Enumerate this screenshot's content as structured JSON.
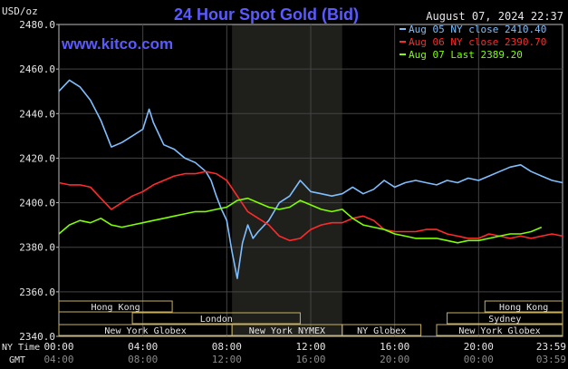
{
  "chart_data": {
    "type": "line",
    "title": "24 Hour Spot Gold (Bid)",
    "ylabel": "USD/oz",
    "timestamp": "August 07, 2024 22:37",
    "watermark": "www.kitco.com",
    "ylim": [
      2340,
      2480
    ],
    "yticks": [
      "2480.0",
      "2460.0",
      "2440.0",
      "2420.0",
      "2400.0",
      "2380.0",
      "2360.0",
      "2340.0"
    ],
    "xlim": [
      0,
      24
    ],
    "row_labels": {
      "ny": "NY Time",
      "gmt": "GMT"
    },
    "xticks_ny": [
      "00:00",
      "04:00",
      "08:00",
      "12:00",
      "16:00",
      "20:00",
      "23:59"
    ],
    "xticks_gmt": [
      "04:00",
      "08:00",
      "12:00",
      "16:00",
      "20:00",
      "00:00",
      "03:59"
    ],
    "shaded_session": [
      8.25,
      13.5
    ],
    "sessions": {
      "top": [
        {
          "label": "Hong Kong",
          "start": 0,
          "end": 5.4
        },
        {
          "label": "Hong Kong",
          "start": 20.3,
          "end": 24
        }
      ],
      "middle": [
        {
          "label": "London",
          "start": 3.5,
          "end": 11.5
        },
        {
          "label": "Sydney",
          "start": 18.5,
          "end": 24
        }
      ],
      "bottom": [
        {
          "label": "New York Globex",
          "start": 0,
          "end": 8.25
        },
        {
          "label": "New York NYMEX",
          "start": 8.25,
          "end": 13.5
        },
        {
          "label": "NY Globex",
          "start": 13.5,
          "end": 17.25
        },
        {
          "label": "New York Globex",
          "start": 18.0,
          "end": 24
        }
      ]
    },
    "series": [
      {
        "name": "Aug 05 NY close 2410.40",
        "color": "#7fbfff",
        "x": [
          0,
          0.5,
          1,
          1.5,
          2,
          2.5,
          3,
          3.5,
          4,
          4.3,
          4.5,
          5,
          5.5,
          6,
          6.5,
          7,
          7.25,
          7.5,
          7.75,
          8,
          8.25,
          8.5,
          8.75,
          9,
          9.25,
          9.5,
          10,
          10.5,
          11,
          11.5,
          12,
          12.5,
          13,
          13.5,
          14,
          14.5,
          15,
          15.5,
          16,
          16.5,
          17,
          17.5,
          18,
          18.5,
          19,
          19.5,
          20,
          20.5,
          21,
          21.5,
          22,
          22.5,
          23,
          23.5,
          24
        ],
        "y": [
          2450,
          2455,
          2452,
          2446,
          2437,
          2425,
          2427,
          2430,
          2433,
          2442,
          2436,
          2426,
          2424,
          2420,
          2418,
          2414,
          2410,
          2403,
          2397,
          2392,
          2378,
          2366,
          2382,
          2390,
          2384,
          2387,
          2392,
          2400,
          2403,
          2410,
          2405,
          2404,
          2403,
          2404,
          2407,
          2404,
          2406,
          2410,
          2407,
          2409,
          2410,
          2409,
          2408,
          2410,
          2409,
          2411,
          2410,
          2412,
          2414,
          2416,
          2417,
          2414,
          2412,
          2410,
          2409
        ]
      },
      {
        "name": "Aug 06 NY close 2390.70",
        "color": "#ff2a2a",
        "x": [
          0,
          0.5,
          1,
          1.5,
          2,
          2.5,
          3,
          3.5,
          4,
          4.5,
          5,
          5.5,
          6,
          6.5,
          7,
          7.5,
          8,
          8.5,
          9,
          9.5,
          10,
          10.5,
          11,
          11.5,
          12,
          12.5,
          13,
          13.5,
          14,
          14.5,
          15,
          15.5,
          16,
          16.5,
          17,
          17.5,
          18,
          18.5,
          19,
          19.5,
          20,
          20.5,
          21,
          21.5,
          22,
          22.5,
          23,
          23.5,
          24
        ],
        "y": [
          2409,
          2408,
          2408,
          2407,
          2402,
          2397,
          2400,
          2403,
          2405,
          2408,
          2410,
          2412,
          2413,
          2413,
          2414,
          2413,
          2410,
          2403,
          2396,
          2393,
          2390,
          2385,
          2383,
          2384,
          2388,
          2390,
          2391,
          2391,
          2393,
          2394,
          2392,
          2388,
          2387,
          2387,
          2387,
          2388,
          2388,
          2386,
          2385,
          2384,
          2384,
          2386,
          2385,
          2384,
          2385,
          2384,
          2385,
          2386,
          2385
        ]
      },
      {
        "name": "Aug 07 Last 2389.20",
        "color": "#7fff00",
        "x": [
          0,
          0.5,
          1,
          1.5,
          2,
          2.5,
          3,
          3.5,
          4,
          4.5,
          5,
          5.5,
          6,
          6.5,
          7,
          7.5,
          8,
          8.5,
          9,
          9.5,
          10,
          10.5,
          11,
          11.5,
          12,
          12.5,
          13,
          13.5,
          14,
          14.5,
          15,
          15.5,
          16,
          16.5,
          17,
          17.5,
          18,
          18.5,
          19,
          19.5,
          20,
          20.5,
          21,
          21.5,
          22,
          22.5,
          23
        ],
        "y": [
          2386,
          2390,
          2392,
          2391,
          2393,
          2390,
          2389,
          2390,
          2391,
          2392,
          2393,
          2394,
          2395,
          2396,
          2396,
          2397,
          2398,
          2401,
          2402,
          2400,
          2398,
          2397,
          2398,
          2401,
          2399,
          2397,
          2396,
          2397,
          2393,
          2390,
          2389,
          2388,
          2386,
          2385,
          2384,
          2384,
          2384,
          2383,
          2382,
          2383,
          2383,
          2384,
          2385,
          2386,
          2386,
          2387,
          2389
        ]
      }
    ]
  }
}
